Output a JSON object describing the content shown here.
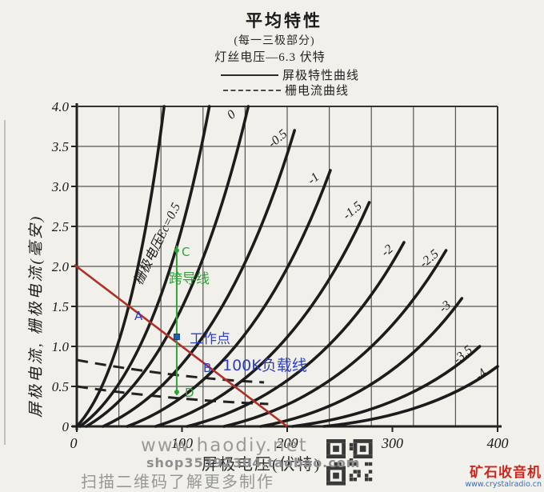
{
  "header": {
    "title": "平均特性",
    "subtitle": "(每一三极部分)",
    "condition": "灯丝电压—6.3 伏特",
    "legend": [
      {
        "style": "solid",
        "label": "屏极特性曲线"
      },
      {
        "style": "dashed",
        "label": "栅电流曲线"
      }
    ]
  },
  "axes": {
    "ylabel": "屏极电流, 栅极电流(毫安)",
    "xlabel": "屏极电压(伏特)",
    "ytick_labels": [
      "0",
      "0.5",
      "1.0",
      "1.5",
      "2.0",
      "2.5",
      "3.0",
      "3.5",
      "4.0"
    ],
    "xtick_labels": [
      "0",
      "100",
      "200",
      "300",
      "400"
    ]
  },
  "chart_data": {
    "type": "line",
    "title": "平均特性",
    "xlabel": "屏极电压(伏特)",
    "ylabel": "屏极电流, 栅极电流(毫安)",
    "xlim": [
      0,
      400
    ],
    "ylim": [
      0,
      4
    ],
    "xticks": [
      0,
      100,
      200,
      300,
      400
    ],
    "yticks": [
      0,
      0.5,
      1.0,
      1.5,
      2.0,
      2.5,
      3.0,
      3.5,
      4.0
    ],
    "grid": "on",
    "plate_curves": [
      {
        "grid_voltage": null,
        "label": "",
        "v_start": 0,
        "v_end": 83,
        "i_end": 4.0
      },
      {
        "grid_voltage": 0.5,
        "label": "栅极电压Ec=0.5",
        "v_start": 3,
        "v_end": 126,
        "i_end": 4.0
      },
      {
        "grid_voltage": 0,
        "label": "0",
        "v_start": 9,
        "v_end": 163,
        "i_end": 4.0
      },
      {
        "grid_voltage": -0.5,
        "label": "-0.5",
        "v_start": 25,
        "v_end": 207,
        "i_end": 3.7
      },
      {
        "grid_voltage": -1,
        "label": "-1",
        "v_start": 48,
        "v_end": 241,
        "i_end": 3.2
      },
      {
        "grid_voltage": -1.5,
        "label": "-1.5",
        "v_start": 75,
        "v_end": 278,
        "i_end": 2.8
      },
      {
        "grid_voltage": -2,
        "label": "-2",
        "v_start": 105,
        "v_end": 311,
        "i_end": 2.3
      },
      {
        "grid_voltage": -2.5,
        "label": "-2.5",
        "v_start": 140,
        "v_end": 351,
        "i_end": 2.2
      },
      {
        "grid_voltage": -3,
        "label": "-3",
        "v_start": 175,
        "v_end": 366,
        "i_end": 1.6
      },
      {
        "grid_voltage": -3.5,
        "label": "-3.5",
        "v_start": 205,
        "v_end": 383,
        "i_end": 1.0
      },
      {
        "grid_voltage": -4,
        "label": "-4",
        "v_start": 235,
        "v_end": 400,
        "i_end": 0.75
      }
    ],
    "grid_current_curves": [
      {
        "points": [
          [
            0,
            0.83
          ],
          [
            90,
            0.65
          ],
          [
            178,
            0.55
          ]
        ]
      },
      {
        "points": [
          [
            0,
            0.5
          ],
          [
            90,
            0.36
          ],
          [
            182,
            0.28
          ]
        ]
      }
    ],
    "load_line": {
      "label": "100K负载线",
      "from_v_i": [
        0,
        2.0
      ],
      "to_v_i": [
        200,
        0
      ],
      "color": "#b03028"
    },
    "transconductance_line": {
      "label": "跨导线",
      "v": 95,
      "i_range": [
        0.43,
        2.2
      ],
      "color": "#2fa33a"
    },
    "operating_point": {
      "label": "工作点",
      "v": 95,
      "i": 1.12
    },
    "ref_points": {
      "A": [
        62,
        1.41
      ],
      "B": [
        128,
        0.73
      ],
      "C": [
        95,
        2.2
      ],
      "D": [
        95,
        0.43
      ]
    }
  },
  "annotations": {
    "transconductance_label": "跨导线",
    "operating_point_label": "工作点",
    "load_line_label": "100K负载线",
    "point_a": "A",
    "point_b": "B",
    "point_c": "C",
    "point_d": "D",
    "green_color": "#2fa33a",
    "blue_color": "#2b3fc0",
    "red_color": "#b03028"
  },
  "watermarks": {
    "line1": "www.haodiy.net",
    "line2": "shop35392304.taobao.com",
    "line3": "扫描二维码了解更多制作"
  },
  "branding": {
    "site_name": "矿石收音机",
    "site_url": "www.crystalradio.cn"
  }
}
